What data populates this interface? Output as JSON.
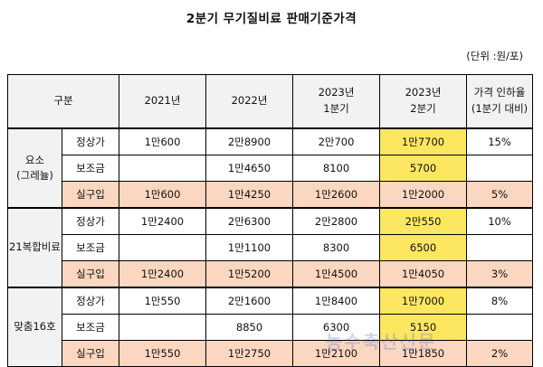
{
  "title": "2분기 무기질비료 판매기준가격",
  "unit": "(단위 :원/포)",
  "header": {
    "gubun": "구분",
    "col1": "2021년",
    "col2": "2022년",
    "col3_l1": "2023년",
    "col3_l2": "1분기",
    "col4_l1": "2023년",
    "col4_l2": "2분기",
    "col5_l1": "가격 인하율",
    "col5_l2": "(1분기 대비)"
  },
  "groups": [
    {
      "name_l1": "요소",
      "name_l2": "(그레뉼)",
      "rows": [
        {
          "label": "정상가",
          "v2021": "1만600",
          "v2022": "2만8900",
          "v2023q1": "2만700",
          "v2023q2": "1만7700",
          "rate": "15%"
        },
        {
          "label": "보조금",
          "v2021": "",
          "v2022": "1만4650",
          "v2023q1": "8100",
          "v2023q2": "5700",
          "rate": ""
        },
        {
          "label": "실구입",
          "v2021": "1만600",
          "v2022": "1만4250",
          "v2023q1": "1만2600",
          "v2023q2": "1만2000",
          "rate": "5%"
        }
      ]
    },
    {
      "name_l1": "21복합비료",
      "name_l2": "",
      "rows": [
        {
          "label": "정상가",
          "v2021": "1만2400",
          "v2022": "2만6300",
          "v2023q1": "2만2800",
          "v2023q2": "2만550",
          "rate": "10%"
        },
        {
          "label": "보조금",
          "v2021": "",
          "v2022": "1만1100",
          "v2023q1": "8300",
          "v2023q2": "6500",
          "rate": ""
        },
        {
          "label": "실구입",
          "v2021": "1만2400",
          "v2022": "1만5200",
          "v2023q1": "1만4500",
          "v2023q2": "1만4050",
          "rate": "3%"
        }
      ]
    },
    {
      "name_l1": "맞춤16호",
      "name_l2": "",
      "rows": [
        {
          "label": "정상가",
          "v2021": "1만550",
          "v2022": "2만1600",
          "v2023q1": "1만8400",
          "v2023q2": "1만7000",
          "rate": "8%"
        },
        {
          "label": "보조금",
          "v2021": "",
          "v2022": "8850",
          "v2023q1": "6300",
          "v2023q2": "5150",
          "rate": ""
        },
        {
          "label": "실구입",
          "v2021": "1만550",
          "v2022": "1만2750",
          "v2023q1": "1만2100",
          "v2023q2": "1만1850",
          "rate": "2%"
        }
      ]
    }
  ],
  "colors": {
    "highlight_yellow": "#fde760",
    "real_purchase_peach": "#fbd6c0",
    "header_gray": "#f2f2f2"
  },
  "watermark": "농수축산신문"
}
